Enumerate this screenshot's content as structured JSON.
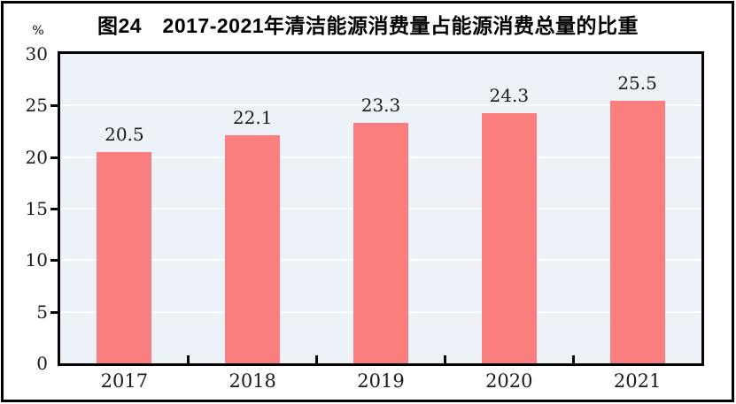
{
  "figure": {
    "title": "图24　2017-2021年清洁能源消费量占能源消费总量的比重",
    "unit_label": "%"
  },
  "chart_data": {
    "type": "bar",
    "title": "图24　2017-2021年清洁能源消费量占能源消费总量的比重",
    "unit_label": "%",
    "categories": [
      "2017",
      "2018",
      "2019",
      "2020",
      "2021"
    ],
    "values": [
      20.5,
      22.1,
      23.3,
      24.3,
      25.5
    ],
    "data_labels": [
      "20.5",
      "22.1",
      "23.3",
      "24.3",
      "25.5"
    ],
    "xlabel": "",
    "ylabel": "%",
    "ylim": [
      0,
      30
    ],
    "yticks": [
      0,
      5,
      10,
      15,
      20,
      25,
      30
    ],
    "grid": "horizontal",
    "legend": "none",
    "colors": {
      "bar": "#FB7E7E",
      "plot_background": "#ECF2F7",
      "gridline": "#FCFDFE",
      "axis_frame": "#000000",
      "text": "#000000",
      "page_background": "#FFFFFF"
    }
  }
}
